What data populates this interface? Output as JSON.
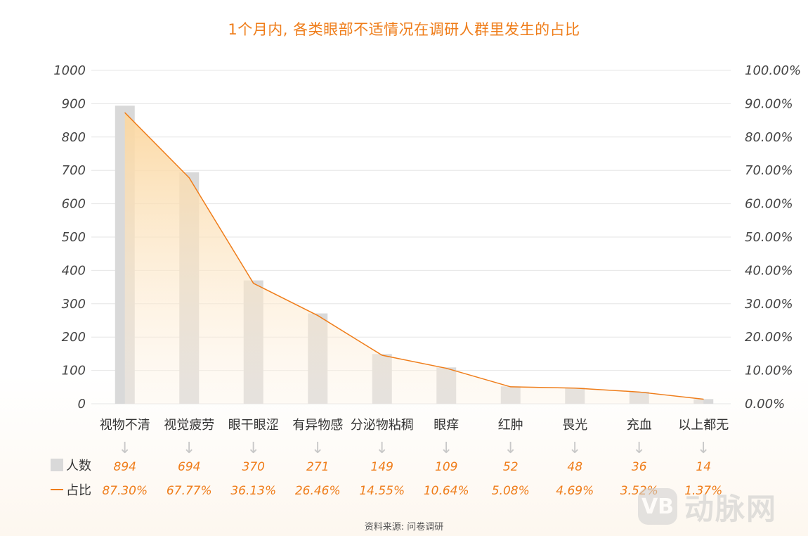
{
  "colors": {
    "accent": "#ef7d1a",
    "bar": "#d9d9d9",
    "line": "#ef7d1a",
    "area_top": "#fbd9a4",
    "grid": "#e6e6e6"
  },
  "source": "资料来源: 问卷调研",
  "watermark": {
    "badge": "VB",
    "text": "动脉网"
  },
  "chart_data": {
    "type": "bar",
    "title": "1个月内, 各类眼部不适情况在调研人群里发生的占比",
    "categories": [
      "视物不清",
      "视觉疲劳",
      "眼干眼涩",
      "有异物感",
      "分泌物粘稠",
      "眼痒",
      "红肿",
      "畏光",
      "充血",
      "以上都无"
    ],
    "series": [
      {
        "name": "人数",
        "type": "bar",
        "axis": "left",
        "values": [
          894,
          694,
          370,
          271,
          149,
          109,
          52,
          48,
          36,
          14
        ],
        "labels": [
          "894",
          "694",
          "370",
          "271",
          "149",
          "109",
          "52",
          "48",
          "36",
          "14"
        ]
      },
      {
        "name": "占比",
        "type": "area-line",
        "axis": "right",
        "values": [
          87.3,
          67.77,
          36.13,
          26.46,
          14.55,
          10.64,
          5.08,
          4.69,
          3.52,
          1.37
        ],
        "labels": [
          "87.30%",
          "67.77%",
          "36.13%",
          "26.46%",
          "14.55%",
          "10.64%",
          "5.08%",
          "4.69%",
          "3.52%",
          "1.37%"
        ]
      }
    ],
    "left_axis": {
      "ylim": [
        0,
        1000
      ],
      "ticks": [
        "0",
        "100",
        "200",
        "300",
        "400",
        "500",
        "600",
        "700",
        "800",
        "900",
        "1000"
      ]
    },
    "right_axis": {
      "ylim": [
        0,
        100
      ],
      "ticks": [
        "0.00%",
        "10.00%",
        "20.00%",
        "30.00%",
        "40.00%",
        "50.00%",
        "60.00%",
        "70.00%",
        "80.00%",
        "90.00%",
        "100.00%"
      ]
    },
    "legend": {
      "bar": "人数",
      "line": "占比",
      "placement": "bottom-left"
    },
    "arrow_glyph": "↓"
  }
}
